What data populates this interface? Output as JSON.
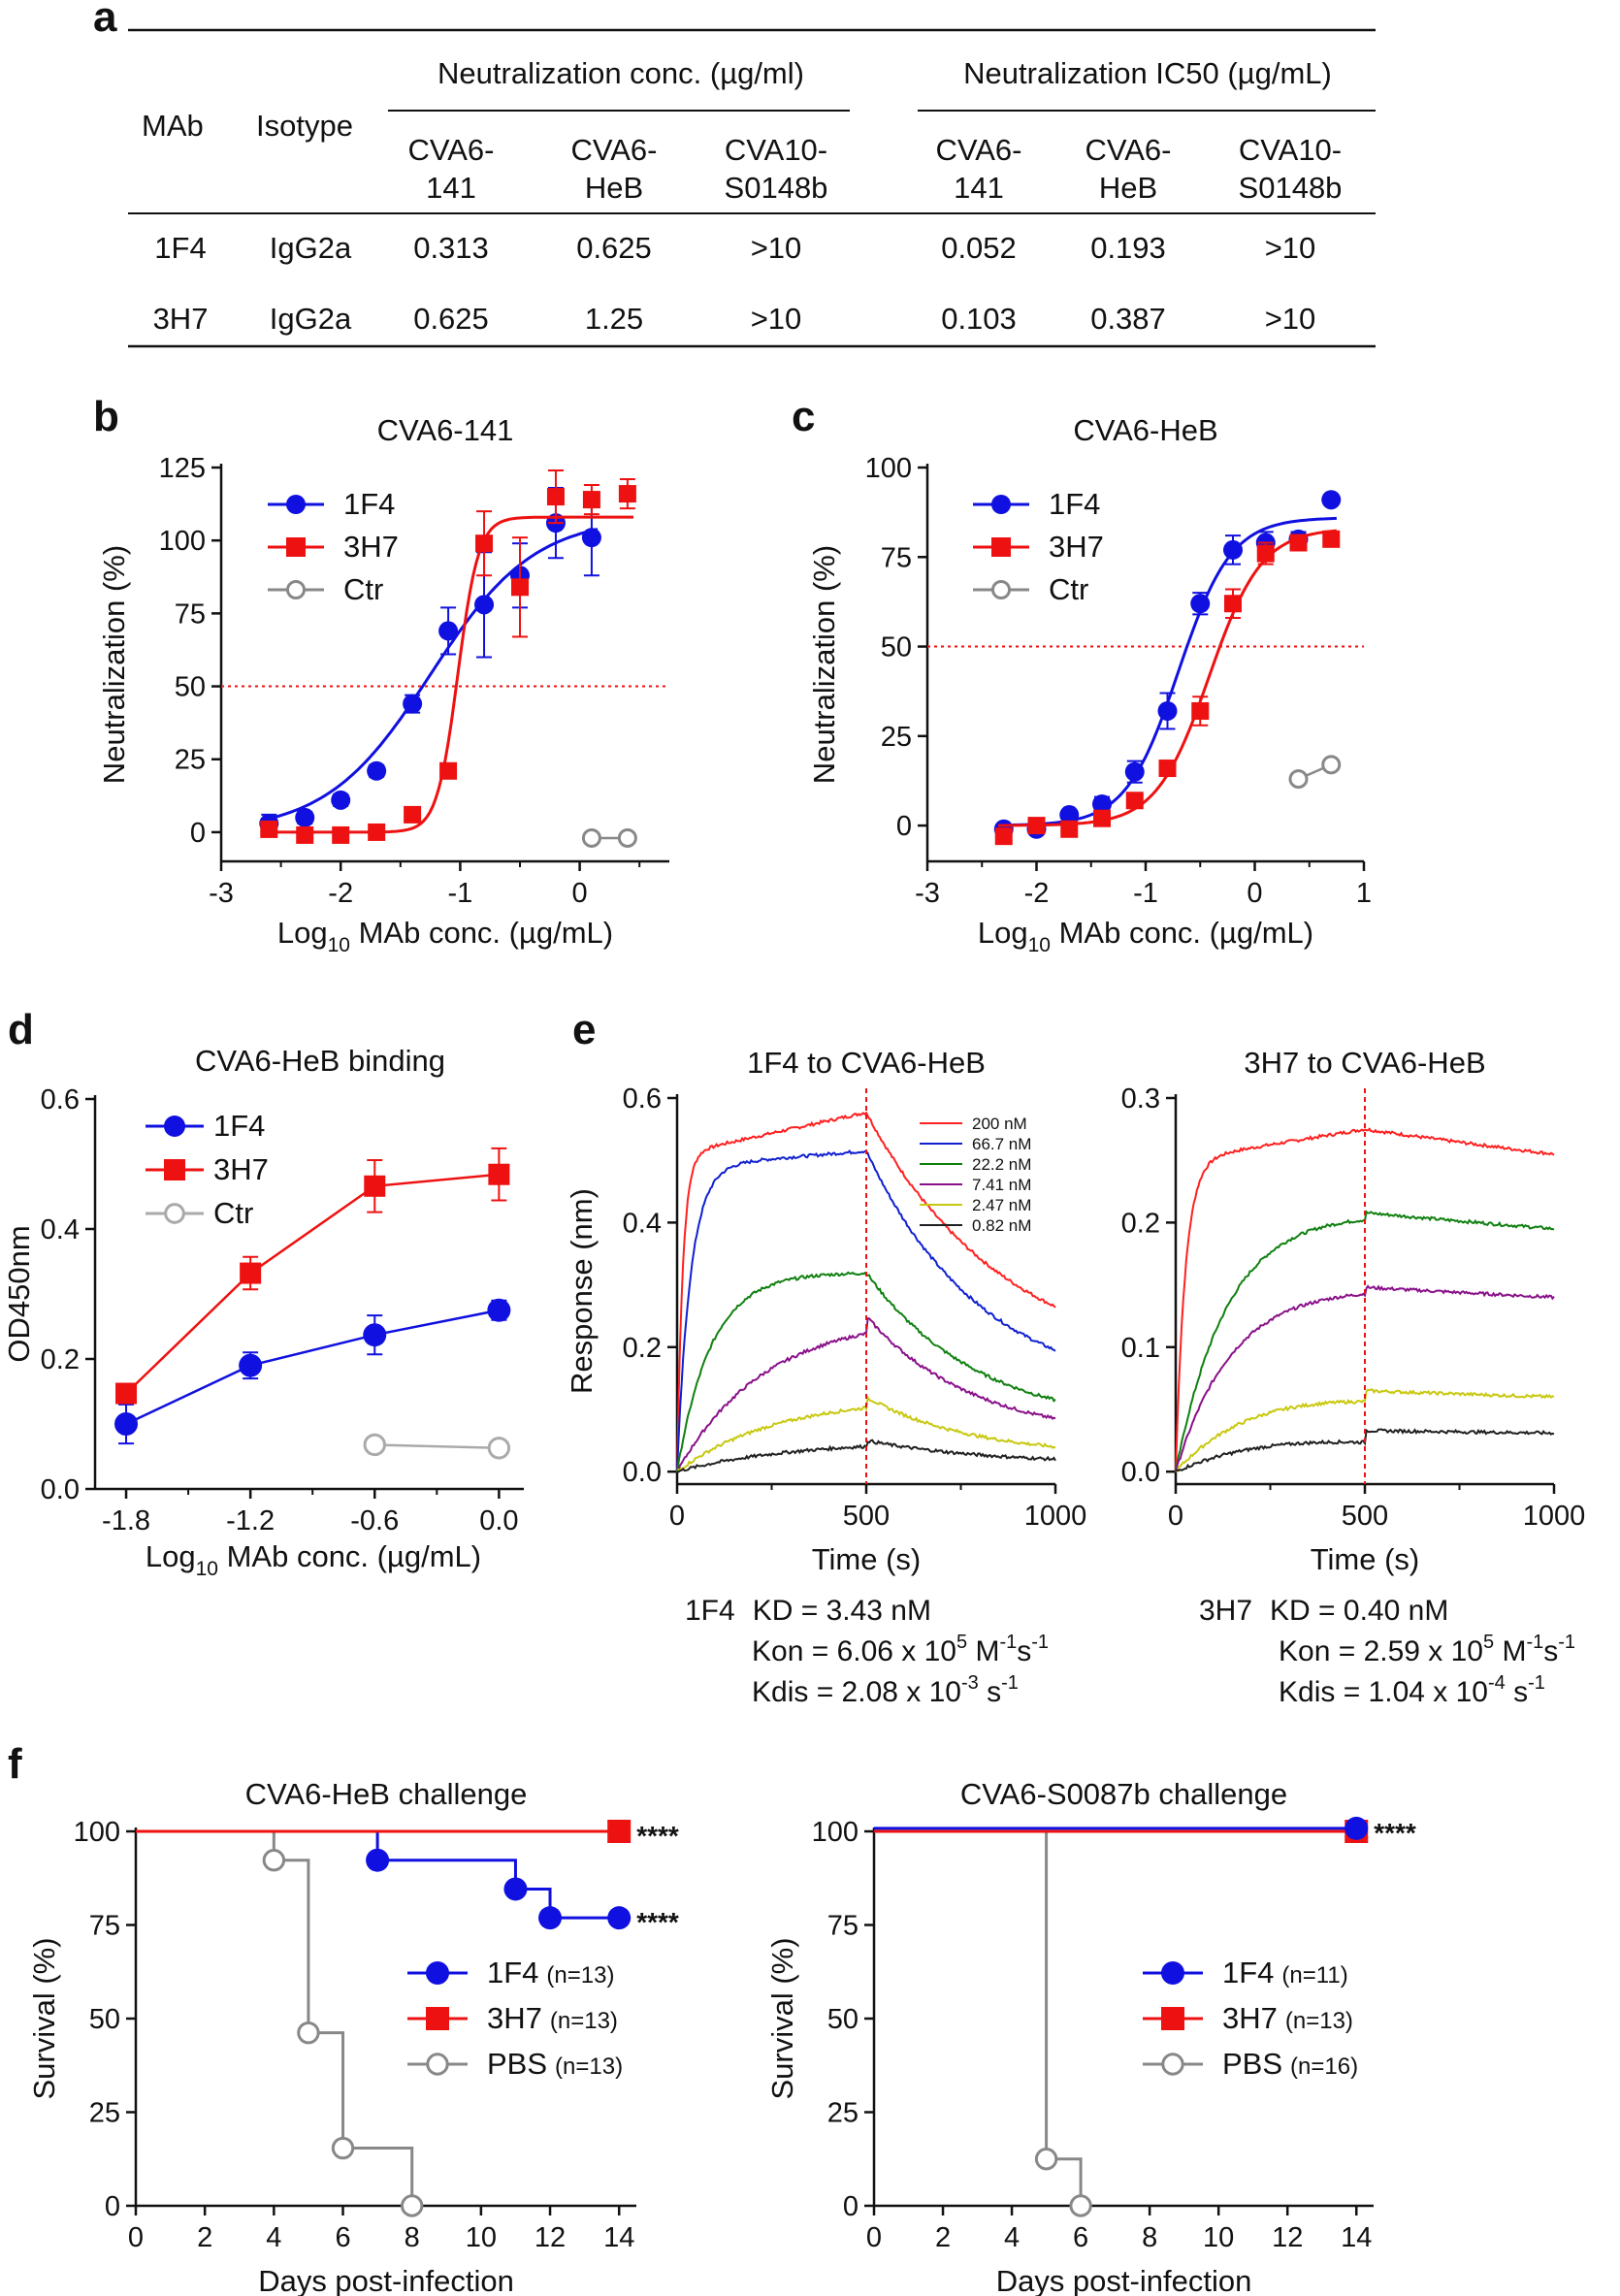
{
  "panels": {
    "a": "a",
    "b": "b",
    "c": "c",
    "d": "d",
    "e": "e",
    "f": "f"
  },
  "table_a": {
    "col_mab": "MAb",
    "col_isotype": "Isotype",
    "group1": "Neutralization conc. (µg/ml)",
    "group2": "Neutralization IC50 (µg/mL)",
    "subheads": [
      [
        "CVA6-",
        "141"
      ],
      [
        "CVA6-",
        "HeB"
      ],
      [
        "CVA10-",
        "S0148b"
      ],
      [
        "CVA6-",
        "141"
      ],
      [
        "CVA6-",
        "HeB"
      ],
      [
        "CVA10-",
        "S0148b"
      ]
    ],
    "rows": [
      [
        "1F4",
        "IgG2a",
        "0.313",
        "0.625",
        ">10",
        "0.052",
        "0.193",
        ">10"
      ],
      [
        "3H7",
        "IgG2a",
        "0.625",
        "1.25",
        ">10",
        "0.103",
        "0.387",
        ">10"
      ]
    ]
  },
  "colors": {
    "1F4": "#1010e0",
    "3H7": "#ee1111",
    "Ctr": "#888888",
    "dotted": "#ee1111"
  },
  "chart_data": [
    {
      "id": "b",
      "type": "scatter",
      "title": "CVA6-141",
      "xlabel": "Log10 MAb conc. (µg/mL)",
      "ylabel": "Neutralization (%)",
      "xlim": [
        -3,
        0.75
      ],
      "ylim": [
        -10,
        125
      ],
      "xticks": [
        -3,
        -2,
        -1,
        0
      ],
      "xtick_labels": [
        "-3",
        "-2",
        "-1",
        "0"
      ],
      "yticks": [
        0,
        25,
        50,
        75,
        100,
        125
      ],
      "ytick_labels": [
        "0",
        "25",
        "50",
        "75",
        "100",
        "125"
      ],
      "reference_line": 50,
      "legend": [
        "1F4",
        "3H7",
        "Ctr"
      ],
      "series": [
        {
          "name": "1F4",
          "marker": "circle",
          "x": [
            -2.6,
            -2.3,
            -2.0,
            -1.7,
            -1.4,
            -1.1,
            -0.8,
            -0.5,
            -0.2,
            0.1
          ],
          "y": [
            3,
            5,
            11,
            21,
            44,
            69,
            78,
            88,
            106,
            101
          ],
          "err": [
            3,
            2,
            2,
            2,
            3,
            8,
            18,
            11,
            12,
            13
          ],
          "fit": {
            "bottom": 0,
            "top": 108,
            "ec50": -1.25,
            "hill": 1.0
          }
        },
        {
          "name": "3H7",
          "marker": "square",
          "x": [
            -2.6,
            -2.3,
            -2.0,
            -1.7,
            -1.4,
            -1.1,
            -0.8,
            -0.5,
            -0.2,
            0.1,
            0.4
          ],
          "y": [
            1,
            -1,
            -1,
            0,
            6,
            21,
            99,
            84,
            115,
            114,
            116
          ],
          "err": [
            0,
            0,
            0,
            0,
            0,
            0,
            11,
            17,
            9,
            5,
            5
          ],
          "fit": {
            "bottom": 0,
            "top": 108,
            "ec50": -1.02,
            "hill": 5.0
          }
        },
        {
          "name": "Ctr",
          "marker": "open-circle",
          "x": [
            0.1,
            0.4
          ],
          "y": [
            -2,
            -2
          ],
          "err": [
            0,
            0
          ]
        }
      ]
    },
    {
      "id": "c",
      "type": "scatter",
      "title": "CVA6-HeB",
      "xlabel": "Log10 MAb conc. (µg/mL)",
      "ylabel": "Neutralization (%)",
      "xlim": [
        -3,
        1
      ],
      "ylim": [
        -10,
        100
      ],
      "xticks": [
        -3,
        -2,
        -1,
        0,
        1
      ],
      "xtick_labels": [
        "-3",
        "-2",
        "-1",
        "0",
        "1"
      ],
      "yticks": [
        0,
        25,
        50,
        75,
        100
      ],
      "ytick_labels": [
        "0",
        "25",
        "50",
        "75",
        "100"
      ],
      "reference_line": 50,
      "legend": [
        "1F4",
        "3H7",
        "Ctr"
      ],
      "series": [
        {
          "name": "1F4",
          "marker": "circle",
          "x": [
            -2.3,
            -2.0,
            -1.7,
            -1.4,
            -1.1,
            -0.8,
            -0.5,
            -0.2,
            0.1,
            0.4,
            0.7
          ],
          "y": [
            -1,
            -1,
            3,
            6,
            15,
            32,
            62,
            77,
            79,
            80,
            91
          ],
          "err": [
            1,
            1,
            1,
            2,
            3,
            5,
            3,
            4,
            3,
            2,
            0
          ],
          "fit": {
            "bottom": 0,
            "top": 86,
            "ec50": -0.7,
            "hill": 1.8
          }
        },
        {
          "name": "3H7",
          "marker": "square",
          "x": [
            -2.3,
            -2.0,
            -1.7,
            -1.4,
            -1.1,
            -0.8,
            -0.5,
            -0.2,
            0.1,
            0.4,
            0.7
          ],
          "y": [
            -3,
            0,
            -1,
            2,
            7,
            16,
            32,
            62,
            76,
            79,
            80
          ],
          "err": [
            0,
            0,
            0,
            0,
            0,
            0,
            4,
            4,
            3,
            2,
            1
          ],
          "fit": {
            "bottom": 0,
            "top": 83,
            "ec50": -0.42,
            "hill": 1.8
          }
        },
        {
          "name": "Ctr",
          "marker": "open-circle",
          "x": [
            0.4,
            0.7
          ],
          "y": [
            13,
            17
          ],
          "err": [
            0,
            0
          ]
        }
      ]
    },
    {
      "id": "d",
      "type": "line",
      "title": "CVA6-HeB binding",
      "xlabel": "Log10 MAb conc. (µg/mL)",
      "ylabel": "OD450nm",
      "xlim": [
        -1.95,
        0.12
      ],
      "ylim": [
        0,
        0.6
      ],
      "xticks": [
        -1.8,
        -1.2,
        -0.6,
        0.0
      ],
      "xtick_labels": [
        "-1.8",
        "-1.2",
        "-0.6",
        "0.0"
      ],
      "yticks": [
        0,
        0.2,
        0.4,
        0.6
      ],
      "ytick_labels": [
        "0.0",
        "0.2",
        "0.4",
        "0.6"
      ],
      "legend": [
        "1F4",
        "3H7",
        "Ctr"
      ],
      "series": [
        {
          "name": "1F4",
          "marker": "circle",
          "x": [
            -1.8,
            -1.2,
            -0.6,
            0.0
          ],
          "y": [
            0.1,
            0.19,
            0.237,
            0.275
          ],
          "err": [
            0.03,
            0.02,
            0.03,
            0.015
          ]
        },
        {
          "name": "3H7",
          "marker": "square",
          "x": [
            -1.8,
            -1.2,
            -0.6,
            0.0
          ],
          "y": [
            0.147,
            0.332,
            0.466,
            0.484
          ],
          "err": [
            0.015,
            0.025,
            0.04,
            0.04
          ]
        },
        {
          "name": "Ctr",
          "marker": "open-circle",
          "x": [
            -0.6,
            0.0
          ],
          "y": [
            0.068,
            0.063
          ],
          "err": [
            0,
            0
          ]
        }
      ]
    },
    {
      "id": "e1",
      "type": "line",
      "title": "1F4 to CVA6-HeB",
      "xlabel": "Time (s)",
      "ylabel": "Response (nm)",
      "xlim": [
        0,
        1000
      ],
      "ylim": [
        -0.02,
        0.6
      ],
      "xticks": [
        0,
        500,
        1000
      ],
      "xtick_labels": [
        "0",
        "500",
        "1000"
      ],
      "yticks": [
        0,
        0.2,
        0.4,
        0.6
      ],
      "ytick_labels": [
        "0.0",
        "0.2",
        "0.4",
        "0.6"
      ],
      "dissociation_start": 500,
      "legend_labels": [
        "200 nM",
        "66.7 nM",
        "22.2 nM",
        "7.41 nM",
        "2.47 nM",
        "0.82 nM"
      ],
      "series": [
        {
          "name": "200 nM",
          "color": "#ff2020",
          "assoc_tau": 15,
          "plateau_start": 0.51,
          "plateau_end": 0.577,
          "end": 0.265
        },
        {
          "name": "66.7 nM",
          "color": "#1020d0",
          "assoc_tau": 35,
          "plateau_start": 0.49,
          "plateau_end": 0.515,
          "end": 0.195
        },
        {
          "name": "22.2 nM",
          "color": "#108010",
          "assoc_tau": 90,
          "plateau_start": 0.32,
          "plateau_end": 0.32,
          "end": 0.115
        },
        {
          "name": "7.41 nM",
          "color": "#8a108a",
          "assoc_tau": 230,
          "plateau_start": 0.25,
          "plateau_end": 0.25,
          "end": 0.085
        },
        {
          "name": "2.47 nM",
          "color": "#c8c810",
          "assoc_tau": 260,
          "plateau_start": 0.12,
          "plateau_end": 0.12,
          "end": 0.04
        },
        {
          "name": "0.82 nM",
          "color": "#202020",
          "assoc_tau": 300,
          "plateau_start": 0.05,
          "plateau_end": 0.05,
          "end": 0.02
        }
      ]
    },
    {
      "id": "e2",
      "type": "line",
      "title": "3H7 to CVA6-HeB",
      "xlabel": "Time (s)",
      "ylabel": "",
      "xlim": [
        0,
        1000
      ],
      "ylim": [
        -0.01,
        0.3
      ],
      "xticks": [
        0,
        500,
        1000
      ],
      "xtick_labels": [
        "0",
        "500",
        "1000"
      ],
      "yticks": [
        0,
        0.1,
        0.2,
        0.3
      ],
      "ytick_labels": [
        "0.0",
        "0.1",
        "0.2",
        "0.3"
      ],
      "dissociation_start": 500,
      "series": [
        {
          "name": "200 nM",
          "color": "#ff2020",
          "assoc_tau": 25,
          "plateau_start": 0.25,
          "plateau_end": 0.275,
          "end": 0.255
        },
        {
          "name": "66.7 nM",
          "color": "#108010",
          "assoc_tau": 140,
          "plateau_start": 0.215,
          "plateau_end": 0.208,
          "end": 0.195
        },
        {
          "name": "22.2 nM",
          "color": "#8a108a",
          "assoc_tau": 150,
          "plateau_start": 0.152,
          "plateau_end": 0.148,
          "end": 0.14
        },
        {
          "name": "7.41 nM",
          "color": "#c8c810",
          "assoc_tau": 250,
          "plateau_start": 0.085,
          "plateau_end": 0.065,
          "end": 0.06
        },
        {
          "name": "2.47 nM",
          "color": "#202020",
          "assoc_tau": 400,
          "plateau_start": 0.055,
          "plateau_end": 0.033,
          "end": 0.031
        }
      ]
    },
    {
      "id": "f1",
      "type": "line",
      "title": "CVA6-HeB challenge",
      "xlabel": "Days post-infection",
      "ylabel": "Survival (%)",
      "xlim": [
        0,
        14.5
      ],
      "ylim": [
        0,
        100
      ],
      "xticks": [
        0,
        2,
        4,
        6,
        8,
        10,
        12,
        14
      ],
      "xtick_labels": [
        "0",
        "2",
        "4",
        "6",
        "8",
        "10",
        "12",
        "14"
      ],
      "yticks": [
        0,
        25,
        50,
        75,
        100
      ],
      "ytick_labels": [
        "0",
        "25",
        "50",
        "75",
        "100"
      ],
      "legend": [
        "1F4 (n=13)",
        "3H7 (n=13)",
        "PBS (n=13)"
      ],
      "series": [
        {
          "name": "1F4",
          "n": "(n=13)",
          "marker": "circle",
          "steps": [
            [
              0,
              100
            ],
            [
              7,
              92.3
            ],
            [
              11,
              84.6
            ],
            [
              12,
              76.9
            ],
            [
              14,
              76.9
            ]
          ],
          "points": [
            [
              7,
              92.3
            ],
            [
              11,
              84.6
            ],
            [
              12,
              76.9
            ],
            [
              14,
              76.9
            ]
          ],
          "sig": "****"
        },
        {
          "name": "3H7",
          "n": "(n=13)",
          "marker": "square",
          "steps": [
            [
              0,
              100
            ],
            [
              14,
              100
            ]
          ],
          "points": [
            [
              14,
              100
            ]
          ],
          "sig": "****"
        },
        {
          "name": "PBS",
          "n": "(n=13)",
          "marker": "open-circle",
          "steps": [
            [
              0,
              100
            ],
            [
              4,
              92.3
            ],
            [
              5,
              46.2
            ],
            [
              6,
              15.4
            ],
            [
              8,
              0
            ]
          ],
          "points": [
            [
              4,
              92.3
            ],
            [
              5,
              46.2
            ],
            [
              6,
              15.4
            ],
            [
              8,
              0
            ]
          ],
          "sig": ""
        }
      ]
    },
    {
      "id": "f2",
      "type": "line",
      "title": "CVA6-S0087b challenge",
      "xlabel": "Days post-infection",
      "ylabel": "Survival (%)",
      "xlim": [
        0,
        14.5
      ],
      "ylim": [
        0,
        100
      ],
      "xticks": [
        0,
        2,
        4,
        6,
        8,
        10,
        12,
        14
      ],
      "xtick_labels": [
        "0",
        "2",
        "4",
        "6",
        "8",
        "10",
        "12",
        "14"
      ],
      "yticks": [
        0,
        25,
        50,
        75,
        100
      ],
      "ytick_labels": [
        "0",
        "25",
        "50",
        "75",
        "100"
      ],
      "legend": [
        "1F4 (n=11)",
        "3H7 (n=13)",
        "PBS (n=16)"
      ],
      "series": [
        {
          "name": "3H7",
          "n": "(n=13)",
          "marker": "square",
          "steps": [
            [
              0,
              100
            ],
            [
              14,
              100
            ]
          ],
          "points": [
            [
              14,
              100
            ]
          ],
          "sig": ""
        },
        {
          "name": "1F4",
          "n": "(n=11)",
          "marker": "circle",
          "steps": [
            [
              0,
              100.8
            ],
            [
              14,
              100.8
            ]
          ],
          "points": [
            [
              14,
              100.8
            ]
          ],
          "sig": "****"
        },
        {
          "name": "PBS",
          "n": "(n=16)",
          "marker": "open-circle",
          "steps": [
            [
              0,
              100
            ],
            [
              5,
              12.5
            ],
            [
              6,
              0
            ]
          ],
          "points": [
            [
              5,
              12.5
            ],
            [
              6,
              0
            ]
          ],
          "sig": ""
        }
      ]
    }
  ],
  "kinetics": {
    "k1": {
      "name": "1F4",
      "kd": "KD =  3.43 nM",
      "kon_pre": "Kon = 6.06 x 10",
      "kon_exp": "5",
      "kon_unit": " M",
      "kon_e1": "-1",
      "kon_s": "s",
      "kon_e2": "-1",
      "kdis_pre": "Kdis = 2.08  x 10",
      "kdis_exp": "-3",
      "kdis_unit": " s",
      "kdis_e": "-1"
    },
    "k2": {
      "name": "3H7",
      "kd": "KD = 0.40 nM",
      "kon_pre": "Kon = 2.59 x 10",
      "kon_exp": "5",
      "kon_unit": " M",
      "kon_e1": "-1",
      "kon_s": "s",
      "kon_e2": "-1",
      "kdis_pre": "Kdis = 1.04 x 10",
      "kdis_exp": "-4",
      "kdis_unit": " s",
      "kdis_e": "-1"
    }
  }
}
